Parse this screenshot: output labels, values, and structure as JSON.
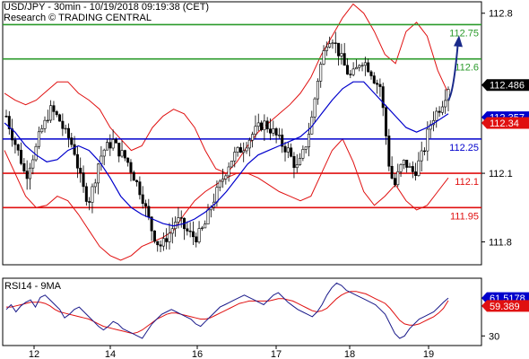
{
  "header": {
    "title": "USD/JPY - 30min - 10/19/2018 09:19:38 (CET)",
    "subtitle": "Research © TRADING CENTRAL"
  },
  "colors": {
    "green": "#2a9a2a",
    "blue": "#0000cc",
    "red": "#e01010",
    "candle": "#000000",
    "arrow": "#1a2a8a",
    "badge_price": "#000000",
    "badge_blue": "#0000cc",
    "badge_red": "#e01010",
    "rsi_line": "#1a1a8a",
    "rsi_ma": "#e01010"
  },
  "chart_data": [
    {
      "type": "candlestick",
      "ylim": [
        111.7,
        112.85
      ],
      "yticks": [
        111.8,
        112.1,
        112.8
      ],
      "yticks_labels": [
        "111.8",
        "112.1",
        "112.8"
      ],
      "xtick_labels": [
        "12",
        "14",
        "16",
        "17",
        "18",
        "19"
      ],
      "levels": [
        {
          "value": 112.75,
          "label": "112.75",
          "color": "green"
        },
        {
          "value": 112.6,
          "label": "112.6",
          "color": "green"
        },
        {
          "value": 112.25,
          "label": "112.25",
          "color": "blue"
        },
        {
          "value": 112.1,
          "label": "112.1",
          "color": "red"
        },
        {
          "value": 111.95,
          "label": "111.95",
          "color": "red"
        }
      ],
      "badges": [
        {
          "value": 112.486,
          "label": "112.486",
          "color": "badge_price"
        },
        {
          "value": 112.357,
          "label": "112.357",
          "color": "badge_blue"
        },
        {
          "value": 112.34,
          "label": "112.34",
          "color": "badge_red"
        }
      ],
      "close_path": [
        112.35,
        112.28,
        112.22,
        112.16,
        112.08,
        112.15,
        112.2,
        112.28,
        112.32,
        112.38,
        112.36,
        112.33,
        112.28,
        112.25,
        112.2,
        112.1,
        112.02,
        111.98,
        112.05,
        112.15,
        112.2,
        112.22,
        112.24,
        112.2,
        112.18,
        112.15,
        112.1,
        112.05,
        112.0,
        111.92,
        111.85,
        111.8,
        111.78,
        111.82,
        111.85,
        111.9,
        111.88,
        111.85,
        111.83,
        111.82,
        111.84,
        111.88,
        111.95,
        112.0,
        112.05,
        112.1,
        112.15,
        112.18,
        112.2,
        112.22,
        112.25,
        112.28,
        112.3,
        112.32,
        112.3,
        112.28,
        112.25,
        112.22,
        112.2,
        112.15,
        112.12,
        112.18,
        112.25,
        112.35,
        112.5,
        112.6,
        112.68,
        112.7,
        112.65,
        112.6,
        112.55,
        112.52,
        112.55,
        112.6,
        112.58,
        112.55,
        112.5,
        112.48,
        112.3,
        112.1,
        112.05,
        112.12,
        112.15,
        112.12,
        112.1,
        112.15,
        112.2,
        112.3,
        112.35,
        112.38,
        112.42,
        112.48
      ],
      "bollinger_upper": [
        112.45,
        112.42,
        112.4,
        112.42,
        112.46,
        112.5,
        112.5,
        112.45,
        112.42,
        112.38,
        112.3,
        112.25,
        112.2,
        112.22,
        112.3,
        112.35,
        112.38,
        112.36,
        112.3,
        112.2,
        112.12,
        112.1,
        112.15,
        112.22,
        112.28,
        112.32,
        112.36,
        112.4,
        112.45,
        112.52,
        112.62,
        112.7,
        112.78,
        112.84,
        112.8,
        112.72,
        112.62,
        112.58,
        112.72,
        112.76,
        112.7,
        112.55,
        112.45
      ],
      "bollinger_lower": [
        112.2,
        112.1,
        112.0,
        111.95,
        111.96,
        112.0,
        111.98,
        111.92,
        111.85,
        111.78,
        111.74,
        111.72,
        111.74,
        111.78,
        111.8,
        111.82,
        111.85,
        111.92,
        111.98,
        112.02,
        112.05,
        112.08,
        112.1,
        112.1,
        112.08,
        112.05,
        112.02,
        112.0,
        111.98,
        112.0,
        112.1,
        112.2,
        112.25,
        112.15,
        112.02,
        111.96,
        112.0,
        112.05,
        111.98,
        111.94,
        111.96,
        112.02,
        112.08
      ],
      "moving_average": [
        112.32,
        112.28,
        112.22,
        112.18,
        112.15,
        112.16,
        112.2,
        112.22,
        112.2,
        112.15,
        112.08,
        112.0,
        111.95,
        111.92,
        111.9,
        111.88,
        111.87,
        111.88,
        111.9,
        111.93,
        111.97,
        112.02,
        112.08,
        112.14,
        112.18,
        112.2,
        112.22,
        112.24,
        112.26,
        112.3,
        112.36,
        112.42,
        112.47,
        112.5,
        112.5,
        112.45,
        112.4,
        112.35,
        112.3,
        112.28,
        112.3,
        112.33,
        112.36
      ]
    },
    {
      "type": "line",
      "title": "RSI14 - 9MA",
      "ylim": [
        22,
        78
      ],
      "yticks": [
        30
      ],
      "yticks_labels": [
        "30"
      ],
      "badges": [
        {
          "value": 61.5178,
          "label": "61.5178",
          "color": "badge_blue"
        },
        {
          "value": 59.389,
          "label": "59.389",
          "color": "badge_red"
        }
      ],
      "rsi": [
        52,
        56,
        50,
        55,
        58,
        60,
        54,
        62,
        64,
        60,
        56,
        52,
        45,
        48,
        52,
        54,
        50,
        46,
        42,
        38,
        35,
        38,
        42,
        40,
        36,
        34,
        32,
        30,
        28,
        34,
        40,
        44,
        48,
        50,
        52,
        50,
        48,
        46,
        44,
        40,
        38,
        42,
        46,
        50,
        54,
        56,
        58,
        60,
        62,
        64,
        62,
        60,
        58,
        56,
        60,
        64,
        66,
        62,
        58,
        55,
        52,
        50,
        48,
        46,
        50,
        56,
        64,
        70,
        74,
        72,
        68,
        66,
        64,
        62,
        60,
        58,
        56,
        52,
        48,
        40,
        32,
        28,
        30,
        36,
        40,
        44,
        46,
        48,
        50,
        54,
        58,
        61.5
      ],
      "rsi_ma": [
        54,
        54,
        55,
        56,
        57,
        58,
        58,
        58,
        57,
        55,
        52,
        50,
        49,
        48,
        47,
        46,
        45,
        44,
        42,
        40,
        38,
        37,
        36,
        35,
        34,
        33,
        32,
        33,
        35,
        38,
        41,
        44,
        46,
        48,
        49,
        49,
        48,
        47,
        46,
        45,
        44,
        44,
        45,
        47,
        49,
        51,
        53,
        55,
        57,
        58,
        59,
        59,
        59,
        59,
        59,
        60,
        61,
        61,
        60,
        59,
        57,
        55,
        53,
        51,
        50,
        51,
        53,
        57,
        61,
        64,
        66,
        67,
        67,
        66,
        65,
        63,
        61,
        59,
        57,
        53,
        48,
        43,
        40,
        39,
        39,
        40,
        42,
        44,
        46,
        49,
        53,
        59.4
      ]
    }
  ]
}
